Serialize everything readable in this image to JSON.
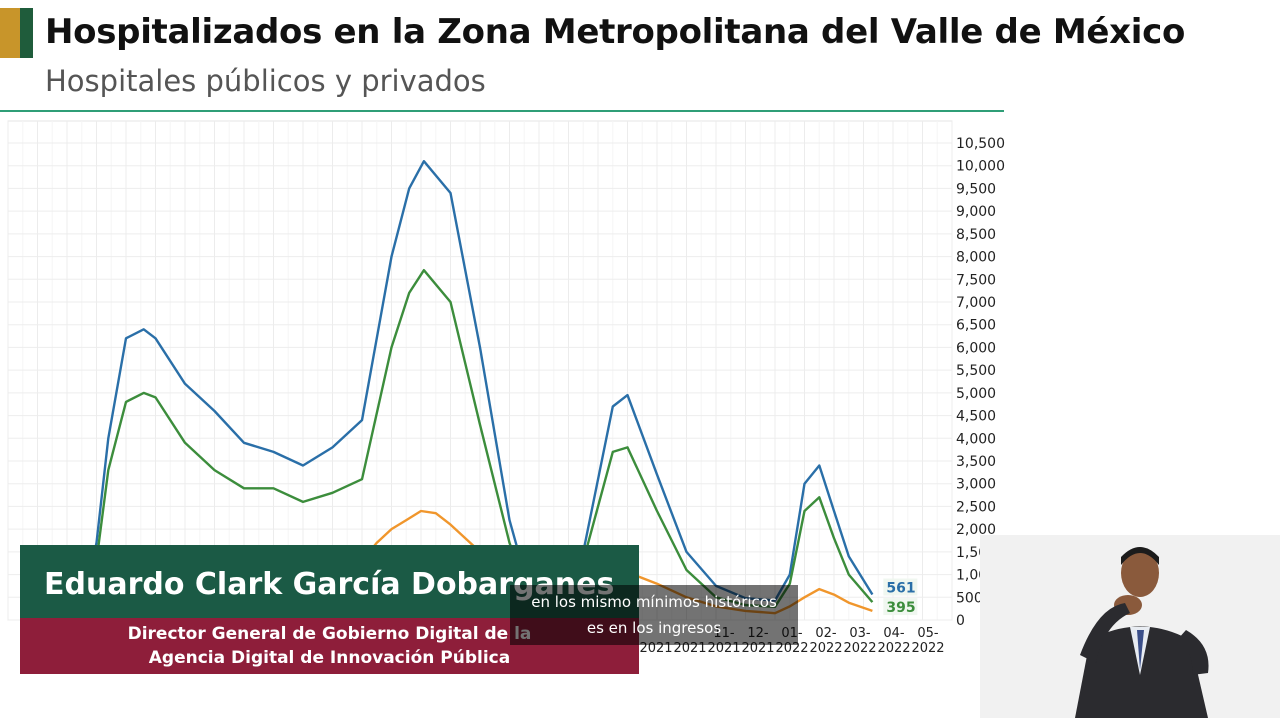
{
  "header": {
    "title": "Hospitalizados en la Zona Metropolitana del Valle de México",
    "subtitle": "Hospitales públicos y privados"
  },
  "colors": {
    "gold": "#c8952a",
    "green": "#1f5c3b",
    "teal_rule": "#2f9e77"
  },
  "chart_data": {
    "type": "line",
    "title": "",
    "xlabel": "",
    "ylabel": "",
    "ylim": [
      0,
      10500
    ],
    "y_ticks": [
      0,
      500,
      1000,
      1500,
      2000,
      2500,
      3000,
      3500,
      4000,
      4500,
      5000,
      5500,
      6000,
      6500,
      7000,
      7500,
      8000,
      8500,
      9000,
      9500,
      10000,
      10500
    ],
    "y_tick_labels": [
      "0",
      "500",
      "1,000",
      "1,500",
      "2,000",
      "2,500",
      "3,000",
      "3,500",
      "4,000",
      "4,500",
      "5,000",
      "5,500",
      "6,000",
      "6,500",
      "7,000",
      "7,500",
      "8,000",
      "8,500",
      "9,000",
      "9,500",
      "10,000",
      "10,500"
    ],
    "x_tick_labels": [
      {
        "line1": "",
        "line2": "2021"
      },
      {
        "line1": "",
        "line2": "2021"
      },
      {
        "line1": "11-",
        "line2": "2021"
      },
      {
        "line1": "12-",
        "line2": "2021"
      },
      {
        "line1": "01-",
        "line2": "2022"
      },
      {
        "line1": "02-",
        "line2": "2022"
      },
      {
        "line1": "03-",
        "line2": "2022"
      },
      {
        "line1": "04-",
        "line2": "2022"
      },
      {
        "line1": "05-",
        "line2": "2022"
      }
    ],
    "grid": true,
    "x_range": [
      0,
      32
    ],
    "series": [
      {
        "name": "",
        "color": "#2a6fa8",
        "end_label": "561",
        "x": [
          0,
          2.5,
          3,
          3.4,
          4,
          4.6,
          5,
          6,
          7,
          8,
          9,
          10,
          11,
          12,
          13,
          13.6,
          14.1,
          15,
          16,
          17,
          17.6,
          18.5,
          19.5,
          20.5,
          21,
          22,
          23,
          24,
          25,
          26,
          26.5,
          27,
          27.5,
          28,
          28.5,
          29.3
        ],
        "values": [
          null,
          100,
          1700,
          4000,
          6200,
          6400,
          6200,
          5200,
          4600,
          3900,
          3700,
          3400,
          3800,
          4400,
          8000,
          9500,
          10100,
          9400,
          6000,
          2200,
          800,
          100,
          1500,
          4700,
          4950,
          3200,
          1500,
          750,
          480,
          430,
          1000,
          3000,
          3400,
          2400,
          1400,
          561
        ]
      },
      {
        "name": "",
        "color": "#3c8d3c",
        "end_label": "395",
        "x": [
          0,
          2.5,
          3,
          3.4,
          4,
          4.6,
          5,
          6,
          7,
          8,
          9,
          10,
          11,
          12,
          13,
          13.6,
          14.1,
          15,
          16,
          17,
          17.6,
          18.5,
          19.5,
          20.5,
          21,
          22,
          23,
          24,
          25,
          26,
          26.5,
          27,
          27.5,
          28,
          28.5,
          29.3
        ],
        "values": [
          null,
          80,
          1300,
          3300,
          4800,
          5000,
          4900,
          3900,
          3300,
          2900,
          2900,
          2600,
          2800,
          3100,
          6000,
          7200,
          7700,
          7000,
          4300,
          1700,
          600,
          80,
          1300,
          3700,
          3800,
          2400,
          1100,
          500,
          330,
          290,
          800,
          2400,
          2700,
          1800,
          1000,
          395
        ]
      },
      {
        "name": "",
        "color": "#f0962c",
        "x": [
          0,
          2.5,
          3,
          3.6,
          4.3,
          5,
          6,
          7,
          8,
          9,
          10,
          11,
          11.5,
          12,
          12.5,
          13,
          13.5,
          14,
          14.5,
          15,
          15.5,
          16,
          17,
          17.5,
          19.5,
          20,
          21,
          22,
          23,
          24,
          25,
          26,
          26.5,
          27,
          27.5,
          28,
          28.5,
          29.3
        ],
        "values": [
          null,
          500,
          1300,
          1450,
          1400,
          1300,
          1200,
          1100,
          1050,
          1000,
          950,
          1000,
          1100,
          1300,
          1700,
          2000,
          2200,
          2400,
          2350,
          2100,
          1800,
          1500,
          1100,
          1000,
          1000,
          1200,
          1050,
          800,
          500,
          300,
          200,
          150,
          300,
          500,
          680,
          560,
          380,
          200
        ]
      }
    ]
  },
  "lower_third": {
    "name": "Eduardo Clark García Dobarganes",
    "role_line1": "Director General de Gobierno Digital de la",
    "role_line2": "Agencia Digital de Innovación Pública"
  },
  "caption": {
    "line1": "en los mismo mínimos históricos",
    "line2": "es en los ingresos"
  }
}
